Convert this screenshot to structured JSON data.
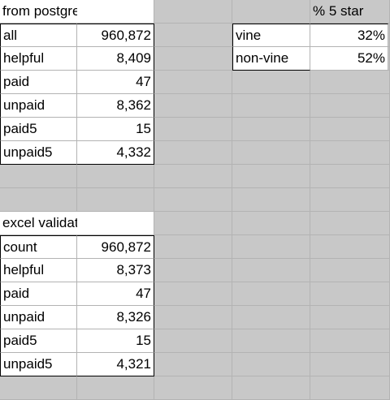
{
  "postgres": {
    "title": "from postgres",
    "rows": [
      {
        "label": "all",
        "value": "960,872"
      },
      {
        "label": "helpful",
        "value": "8,409"
      },
      {
        "label": "paid",
        "value": "47"
      },
      {
        "label": "unpaid",
        "value": "8,362"
      },
      {
        "label": "paid5",
        "value": "15"
      },
      {
        "label": "unpaid5",
        "value": "4,332"
      }
    ]
  },
  "five_star": {
    "header": "% 5 star",
    "rows": [
      {
        "label": "vine",
        "value": "32%"
      },
      {
        "label": "non-vine",
        "value": "52%"
      }
    ]
  },
  "excel": {
    "title": "excel validation",
    "rows": [
      {
        "label": "count",
        "value": "960,872"
      },
      {
        "label": "helpful",
        "value": "8,373"
      },
      {
        "label": "paid",
        "value": "47"
      },
      {
        "label": "unpaid",
        "value": "8,326"
      },
      {
        "label": "paid5",
        "value": "15"
      },
      {
        "label": "unpaid5",
        "value": "4,321"
      }
    ]
  }
}
